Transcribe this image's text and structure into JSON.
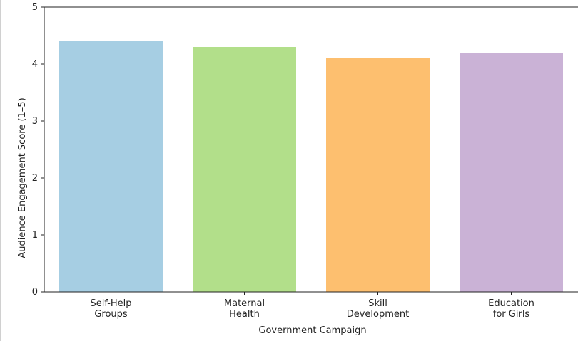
{
  "chart_data": {
    "type": "bar",
    "categories": [
      [
        "Self-Help",
        "Groups"
      ],
      [
        "Maternal",
        "Health"
      ],
      [
        "Skill",
        "Development"
      ],
      [
        "Education",
        "for Girls"
      ]
    ],
    "values": [
      4.4,
      4.3,
      4.1,
      4.2
    ],
    "colors": [
      "#a6cee3",
      "#b2df8a",
      "#fdbf6f",
      "#cab2d6"
    ],
    "xlabel": "Government Campaign",
    "ylabel": "Audience Engagement Score (1–5)",
    "ylim": [
      0,
      5
    ],
    "yticks": [
      0,
      1,
      2,
      3,
      4,
      5
    ],
    "grid": false
  }
}
